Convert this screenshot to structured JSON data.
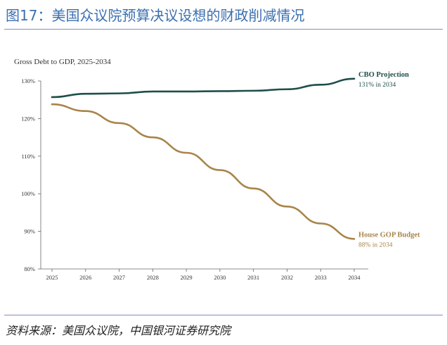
{
  "figure": {
    "title": "图17：美国众议院预算决议设想的财政削减情况",
    "source": "资料来源：美国众议院，中国银河证券研究院"
  },
  "chart_data": {
    "type": "line",
    "title": "Gross Debt to GDP, 2025-2034",
    "xlabel": "",
    "ylabel": "",
    "x": [
      2025,
      2026,
      2027,
      2028,
      2029,
      2030,
      2031,
      2032,
      2033,
      2034
    ],
    "x_tick_labels": [
      "2025",
      "2026",
      "2027",
      "2028",
      "2029",
      "2030",
      "2031",
      "2032",
      "2033",
      "2034"
    ],
    "ylim": [
      80,
      130
    ],
    "y_ticks": [
      80,
      90,
      100,
      110,
      120,
      130
    ],
    "y_tick_labels": [
      "80%",
      "90%",
      "100%",
      "110%",
      "120%",
      "130%"
    ],
    "grid": false,
    "series": [
      {
        "name": "CBO Projection",
        "annotation": "131% in 2034",
        "color": "#1e4f4a",
        "values": [
          125.7,
          126.6,
          126.7,
          127.2,
          127.2,
          127.3,
          127.4,
          127.8,
          129.0,
          130.6
        ]
      },
      {
        "name": "House GOP Budget",
        "annotation": "88% in 2034",
        "color": "#a8854a",
        "values": [
          123.8,
          122.0,
          118.8,
          115.0,
          110.9,
          106.3,
          101.4,
          96.6,
          92.1,
          88.0
        ]
      }
    ]
  }
}
